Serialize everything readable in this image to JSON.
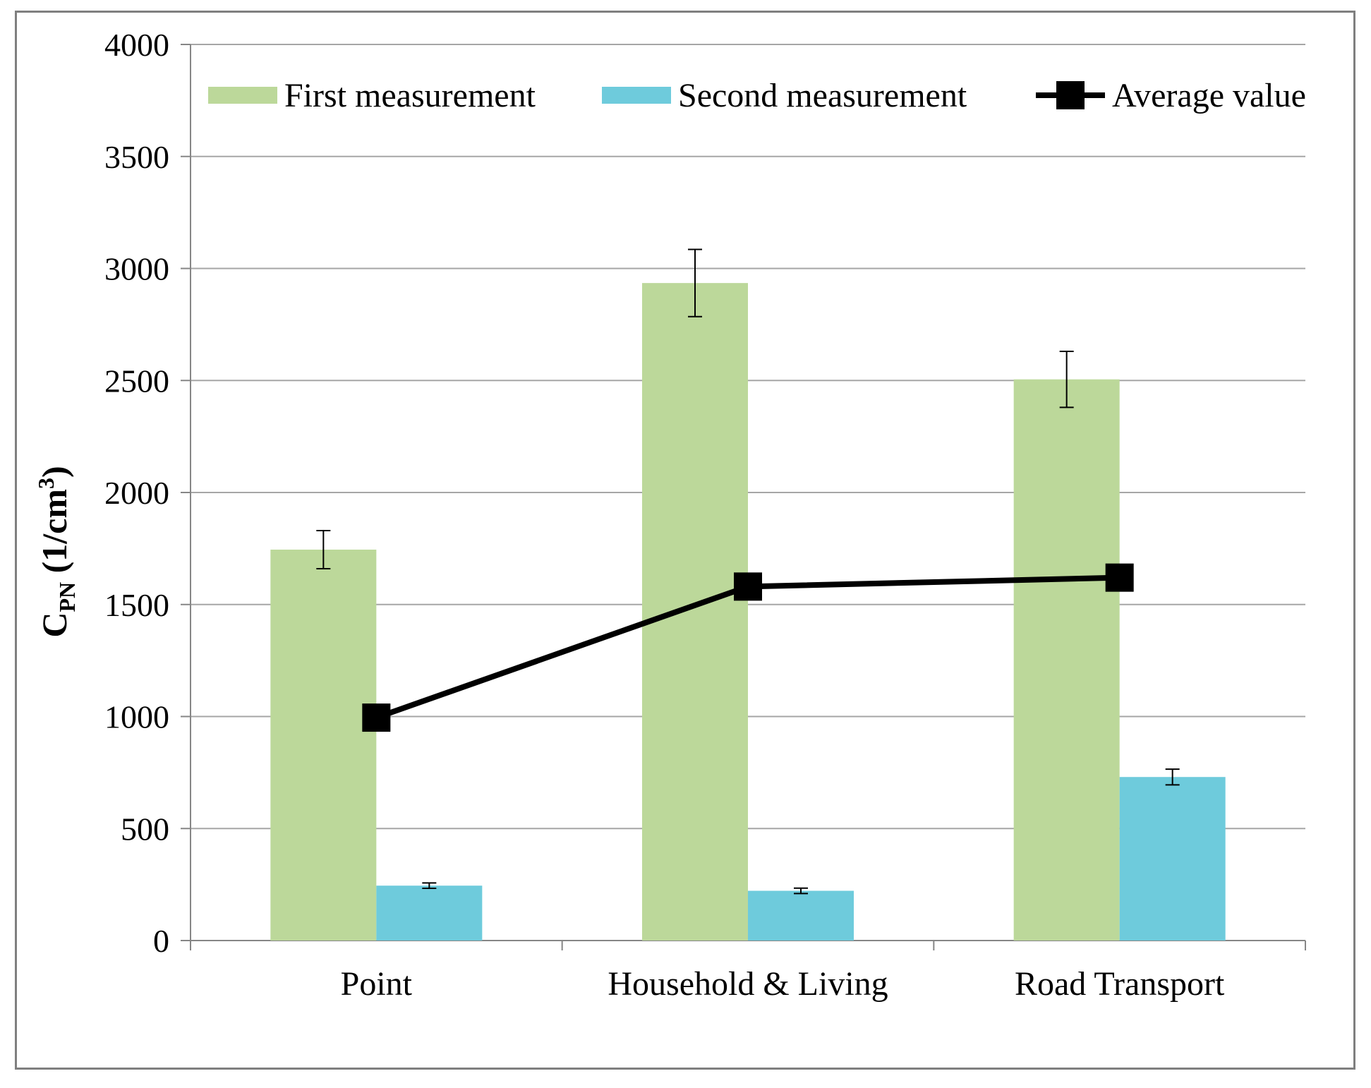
{
  "chart_data": {
    "type": "bar",
    "title": "",
    "xlabel": "",
    "ylabel": {
      "main": "C",
      "subscript": "PN",
      "unit_prefix": " (1/cm",
      "unit_superscript": "3",
      "unit_suffix": ")"
    },
    "ylim": [
      0,
      4000
    ],
    "yticks": [
      0,
      500,
      1000,
      1500,
      2000,
      2500,
      3000,
      3500,
      4000
    ],
    "grid": true,
    "legend_position": "top",
    "categories": [
      "Point",
      "Household & Living",
      "Road Transport"
    ],
    "series": [
      {
        "name": "First measurement",
        "type": "bar",
        "color": "#bcd89a",
        "values": [
          1745,
          2935,
          2505
        ],
        "error": [
          85,
          150,
          125
        ]
      },
      {
        "name": "Second measurement",
        "type": "bar",
        "color": "#6ecbdc",
        "values": [
          245,
          222,
          730
        ],
        "error": [
          12,
          12,
          35
        ]
      },
      {
        "name": "Average value",
        "type": "line",
        "color": "#000000",
        "marker": "square",
        "values": [
          995,
          1580,
          1620
        ]
      }
    ]
  }
}
